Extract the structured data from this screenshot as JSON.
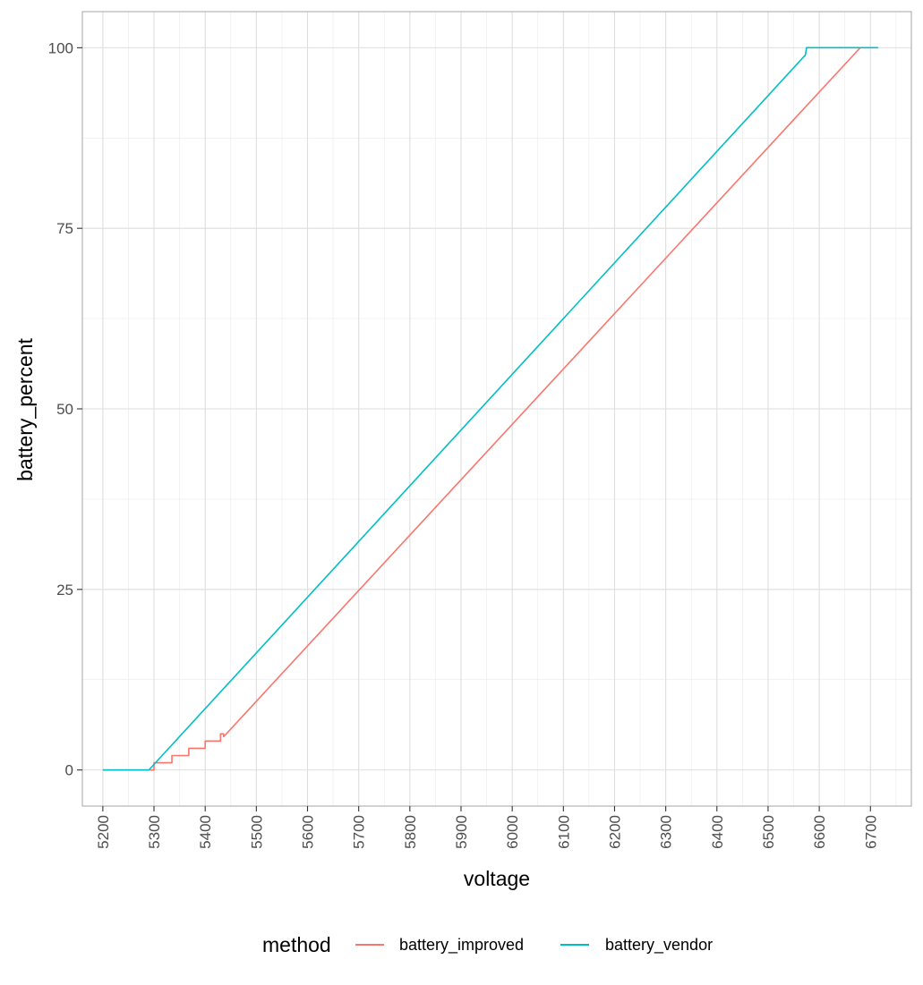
{
  "chart_data": {
    "type": "line",
    "title": "",
    "xlabel": "voltage",
    "ylabel": "battery_percent",
    "xlim": [
      5160,
      6780
    ],
    "ylim": [
      -5,
      105
    ],
    "x_ticks": [
      5200,
      5300,
      5400,
      5500,
      5600,
      5700,
      5800,
      5900,
      6000,
      6100,
      6200,
      6300,
      6400,
      6500,
      6600,
      6700
    ],
    "x_tick_labels": [
      "5200",
      "5300",
      "5400",
      "5500",
      "5600",
      "5700",
      "5800",
      "5900",
      "6000",
      "6100",
      "6200",
      "6300",
      "6400",
      "6500",
      "6600",
      "6700"
    ],
    "x_minor_step": 50,
    "y_ticks": [
      0,
      25,
      50,
      75,
      100
    ],
    "y_tick_labels": [
      "0",
      "25",
      "50",
      "75",
      "100"
    ],
    "y_minor_step": 12.5,
    "grid": true,
    "legend_title": "method",
    "legend_position": "bottom",
    "series": [
      {
        "name": "battery_improved",
        "color": "#F8766D",
        "points": [
          [
            5200,
            0
          ],
          [
            5290,
            0
          ],
          [
            5300,
            0
          ],
          [
            5300,
            1
          ],
          [
            5335,
            1
          ],
          [
            5335,
            2
          ],
          [
            5368,
            2
          ],
          [
            5368,
            3
          ],
          [
            5400,
            3
          ],
          [
            5400,
            4
          ],
          [
            5430,
            4
          ],
          [
            5430,
            5
          ],
          [
            5436,
            5
          ],
          [
            5436,
            4.6
          ],
          [
            6680,
            100
          ],
          [
            6680,
            100
          ]
        ]
      },
      {
        "name": "battery_vendor",
        "color": "#00BFC4",
        "points": [
          [
            5200,
            0
          ],
          [
            5290,
            0
          ],
          [
            6573,
            99
          ],
          [
            6575,
            100
          ],
          [
            6715,
            100
          ]
        ]
      }
    ]
  }
}
